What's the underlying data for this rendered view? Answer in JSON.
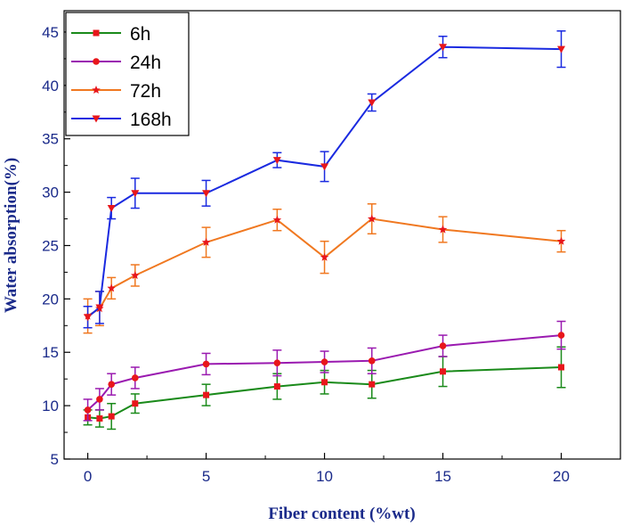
{
  "chart_data": {
    "type": "line",
    "title": "",
    "xlabel": "Fiber content (%wt)",
    "ylabel": "Water absorption(%)",
    "xlim": [
      -1,
      22.5
    ],
    "ylim": [
      5,
      47
    ],
    "xticks": [
      0,
      5,
      10,
      15,
      20
    ],
    "yticks": [
      5,
      10,
      15,
      20,
      25,
      30,
      35,
      40,
      45
    ],
    "grid": false,
    "legend_position": "top-left",
    "x": [
      0,
      0.5,
      1,
      2,
      5,
      8,
      10,
      12,
      15,
      20
    ],
    "series": [
      {
        "name": "6h",
        "color": "#1a8a1a",
        "marker": "square",
        "values": [
          8.9,
          8.8,
          9.0,
          10.2,
          11.0,
          11.8,
          12.2,
          12.0,
          13.2,
          13.6
        ],
        "errors": [
          0.7,
          0.8,
          1.2,
          0.9,
          1.0,
          1.2,
          1.1,
          1.3,
          1.4,
          1.9
        ]
      },
      {
        "name": "24h",
        "color": "#9a1ab0",
        "marker": "circle",
        "values": [
          9.6,
          10.6,
          12.0,
          12.6,
          13.9,
          14.0,
          14.1,
          14.2,
          15.6,
          16.6
        ],
        "errors": [
          1.0,
          1.0,
          1.0,
          1.0,
          1.0,
          1.2,
          1.0,
          1.2,
          1.0,
          1.3
        ]
      },
      {
        "name": "72h",
        "color": "#f07820",
        "marker": "star",
        "values": [
          18.4,
          19.1,
          21.0,
          22.2,
          25.3,
          27.4,
          23.9,
          27.5,
          26.5,
          25.4
        ],
        "errors": [
          1.6,
          1.6,
          1.0,
          1.0,
          1.4,
          1.0,
          1.5,
          1.4,
          1.2,
          1.0
        ]
      },
      {
        "name": "168h",
        "color": "#1a2ae0",
        "marker": "triangle-down",
        "values": [
          18.3,
          19.2,
          28.5,
          29.9,
          29.9,
          33.0,
          32.4,
          38.4,
          43.6,
          43.4
        ],
        "errors": [
          1.0,
          1.5,
          1.0,
          1.4,
          1.2,
          0.7,
          1.4,
          0.8,
          1.0,
          1.7
        ]
      }
    ]
  }
}
